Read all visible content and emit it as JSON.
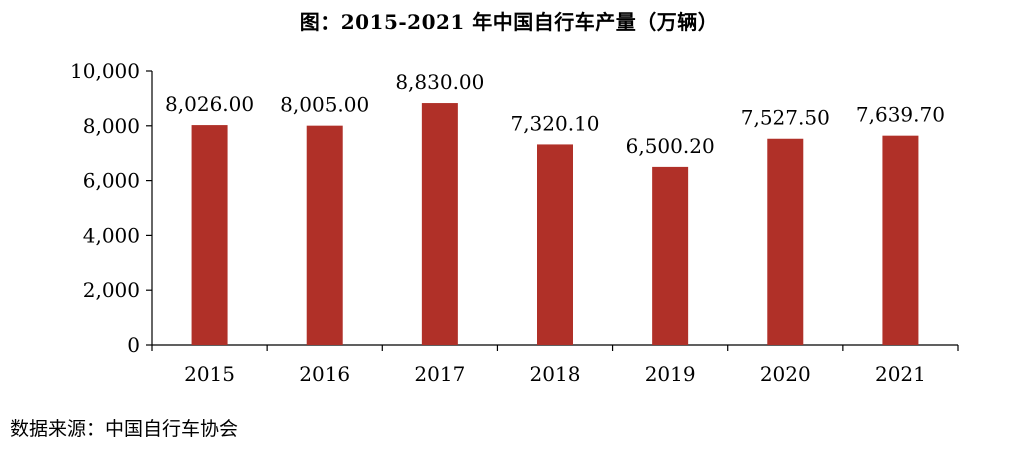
{
  "chart_data": {
    "type": "bar",
    "title": "图：2015-2021 年中国自行车产量（万辆）",
    "categories": [
      "2015",
      "2016",
      "2017",
      "2018",
      "2019",
      "2020",
      "2021"
    ],
    "values": [
      8026.0,
      8005.0,
      8830.0,
      7320.1,
      6500.2,
      7527.5,
      7639.7
    ],
    "data_labels": [
      "8,026.00",
      "8,005.00",
      "8,830.00",
      "7,320.10",
      "6,500.20",
      "7,527.50",
      "7,639.70"
    ],
    "ylim": [
      0,
      10000
    ],
    "yticks": [
      0,
      2000,
      4000,
      6000,
      8000,
      10000
    ],
    "ytick_labels": [
      "0",
      "2,000",
      "4,000",
      "6,000",
      "8,000",
      "10,000"
    ],
    "xlabel": "",
    "ylabel": "",
    "bar_color": "#B03028",
    "grid": false,
    "legend": "none"
  },
  "source": "数据来源：中国自行车协会"
}
